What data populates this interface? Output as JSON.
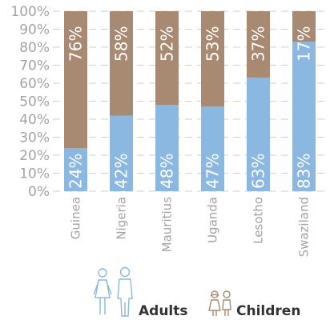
{
  "chart_data": {
    "type": "bar",
    "stacked": true,
    "categories": [
      "Guinea",
      "Nigeria",
      "Mauritius",
      "Uganda",
      "Lesotho",
      "Swaziland"
    ],
    "series": [
      {
        "name": "Adults",
        "values": [
          24,
          42,
          48,
          47,
          63,
          83
        ],
        "labels": [
          "24%",
          "42%",
          "48%",
          "47%",
          "63%",
          "83%"
        ],
        "color": "#8ab8e0"
      },
      {
        "name": "Children",
        "values": [
          76,
          58,
          52,
          53,
          37,
          17
        ],
        "labels": [
          "76%",
          "58%",
          "52%",
          "53%",
          "37%",
          "17%"
        ],
        "color": "#a88a72"
      }
    ],
    "ylim": [
      0,
      100
    ],
    "yticks": [
      0,
      10,
      20,
      30,
      40,
      50,
      60,
      70,
      80,
      90,
      100
    ],
    "ytick_labels": [
      "0%",
      "10%",
      "20%",
      "30%",
      "40%",
      "50%",
      "60%",
      "70%",
      "80%",
      "90%",
      "100%"
    ],
    "grid": true,
    "legend_position": "bottom",
    "legend_icons": {
      "adults": "adult-figures-icon",
      "children": "child-figures-icon"
    },
    "colors": {
      "grid": "#cfcfcf",
      "axis_text": "#a3a3a3",
      "adult_icon": "#8ab8e0",
      "child_icon": "#a88a72"
    }
  }
}
